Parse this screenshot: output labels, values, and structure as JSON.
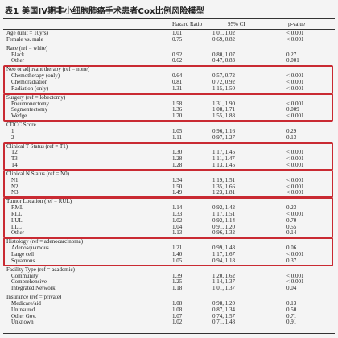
{
  "title": "表1  美国IV期非小细胞肺癌手术患者Cox比例风险模型",
  "headers": [
    "Hazard Ratio",
    "95% CI",
    "p-value"
  ],
  "rows": [
    {
      "label": "Age (unit = 10yrs)",
      "hr": "1.01",
      "ci": "1.01, 1.02",
      "p": "< 0.001"
    },
    {
      "label": "Female vs. male",
      "hr": "0.75",
      "ci": "0.69, 0.82",
      "p": "< 0.001"
    },
    {
      "label": "Race (ref = white)",
      "hr": "",
      "ci": "",
      "p": "",
      "gap": true
    },
    {
      "label": "Black",
      "hr": "0.92",
      "ci": "0.80, 1.07",
      "p": "0.27",
      "indent": true
    },
    {
      "label": "Other",
      "hr": "0.62",
      "ci": "0.47, 0.83",
      "p": "0.001",
      "indent": true
    },
    {
      "label": "Neo or adjuvant therapy (ref = none)",
      "hr": "",
      "ci": "",
      "p": "",
      "gap": true
    },
    {
      "label": "Chemotherapy (only)",
      "hr": "0.64",
      "ci": "0.57, 0.72",
      "p": "< 0.001",
      "indent": true
    },
    {
      "label": "Chemoradiation",
      "hr": "0.81",
      "ci": "0.72, 0.92",
      "p": "< 0.001",
      "indent": true
    },
    {
      "label": "Radiation (only)",
      "hr": "1.31",
      "ci": "1.15, 1.50",
      "p": "< 0.001",
      "indent": true
    },
    {
      "label": "Surgery (ref = lobectomy)",
      "hr": "",
      "ci": "",
      "p": "",
      "gap": true
    },
    {
      "label": "Pneumonectomy",
      "hr": "1.58",
      "ci": "1.31, 1.90",
      "p": "< 0.001",
      "indent": true
    },
    {
      "label": "Segmentectomy",
      "hr": "1.36",
      "ci": "1.08, 1.71",
      "p": "0.009",
      "indent": true
    },
    {
      "label": "Wedge",
      "hr": "1.70",
      "ci": "1.55, 1.88",
      "p": "< 0.001",
      "indent": true
    },
    {
      "label": "CDCC Score",
      "hr": "",
      "ci": "",
      "p": "",
      "gap": true
    },
    {
      "label": "1",
      "hr": "1.05",
      "ci": "0.96, 1.16",
      "p": "0.29",
      "indent": true
    },
    {
      "label": "2",
      "hr": "1.11",
      "ci": "0.97, 1.27",
      "p": "0.13",
      "indent": true
    },
    {
      "label": "Clinical T Status (ref = T1)",
      "hr": "",
      "ci": "",
      "p": "",
      "gap": true
    },
    {
      "label": "T2",
      "hr": "1.30",
      "ci": "1.17, 1.45",
      "p": "< 0.001",
      "indent": true
    },
    {
      "label": "T3",
      "hr": "1.28",
      "ci": "1.11, 1.47",
      "p": "< 0.001",
      "indent": true
    },
    {
      "label": "T4",
      "hr": "1.28",
      "ci": "1.13, 1.45",
      "p": "< 0.001",
      "indent": true
    },
    {
      "label": "Clinical N Status (ref = N0)",
      "hr": "",
      "ci": "",
      "p": "",
      "gap": true
    },
    {
      "label": "N1",
      "hr": "1.34",
      "ci": "1.19, 1.51",
      "p": "< 0.001",
      "indent": true
    },
    {
      "label": "N2",
      "hr": "1.50",
      "ci": "1.35, 1.66",
      "p": "< 0.001",
      "indent": true
    },
    {
      "label": "N3",
      "hr": "1.49",
      "ci": "1.23, 1.81",
      "p": "< 0.001",
      "indent": true
    },
    {
      "label": "Tumor Location (ref = RUL)",
      "hr": "",
      "ci": "",
      "p": "",
      "gap": true
    },
    {
      "label": "RML",
      "hr": "1.14",
      "ci": "0.92, 1.42",
      "p": "0.23",
      "indent": true
    },
    {
      "label": "RLL",
      "hr": "1.33",
      "ci": "1.17, 1.51",
      "p": "< 0.001",
      "indent": true
    },
    {
      "label": "LUL",
      "hr": "1.02",
      "ci": "0.92, 1.14",
      "p": "0.70",
      "indent": true
    },
    {
      "label": "LLL",
      "hr": "1.04",
      "ci": "0.91, 1.20",
      "p": "0.55",
      "indent": true
    },
    {
      "label": "Other",
      "hr": "1.13",
      "ci": "0.96, 1.32",
      "p": "0.14",
      "indent": true
    },
    {
      "label": "Histology (ref = adenocarcinoma)",
      "hr": "",
      "ci": "",
      "p": "",
      "gap": true
    },
    {
      "label": "Adenosquamous",
      "hr": "1.21",
      "ci": "0.99, 1.48",
      "p": "0.06",
      "indent": true
    },
    {
      "label": "Large cell",
      "hr": "1.40",
      "ci": "1.17, 1.67",
      "p": "< 0.001",
      "indent": true
    },
    {
      "label": "Squamous",
      "hr": "1.05",
      "ci": "0.94, 1.18",
      "p": "0.37",
      "indent": true
    },
    {
      "label": "Facility Type (ref = academic)",
      "hr": "",
      "ci": "",
      "p": "",
      "gap": true
    },
    {
      "label": "Community",
      "hr": "1.39",
      "ci": "1.20, 1.62",
      "p": "< 0.001",
      "indent": true
    },
    {
      "label": "Comprehensive",
      "hr": "1.25",
      "ci": "1.14, 1.37",
      "p": "< 0.001",
      "indent": true
    },
    {
      "label": "Integrated Network",
      "hr": "1.18",
      "ci": "1.01, 1.37",
      "p": "0.04",
      "indent": true
    },
    {
      "label": "Insurance (ref = private)",
      "hr": "",
      "ci": "",
      "p": "",
      "gap": true
    },
    {
      "label": "Medicare/aid",
      "hr": "1.08",
      "ci": "0.98, 1.20",
      "p": "0.13",
      "indent": true
    },
    {
      "label": "Uninsured",
      "hr": "1.08",
      "ci": "0.87, 1.34",
      "p": "0.50",
      "indent": true
    },
    {
      "label": "Other Gov.",
      "hr": "1.07",
      "ci": "0.74, 1.57",
      "p": "0.71",
      "indent": true
    },
    {
      "label": "Unknown",
      "hr": "1.02",
      "ci": "0.71, 1.48",
      "p": "0.91",
      "indent": true
    }
  ],
  "highlight_color": "#c92a32",
  "highlight_groups": [
    [
      5,
      8
    ],
    [
      9,
      12
    ],
    [
      16,
      19
    ],
    [
      20,
      23
    ],
    [
      24,
      29
    ],
    [
      30,
      33
    ]
  ]
}
